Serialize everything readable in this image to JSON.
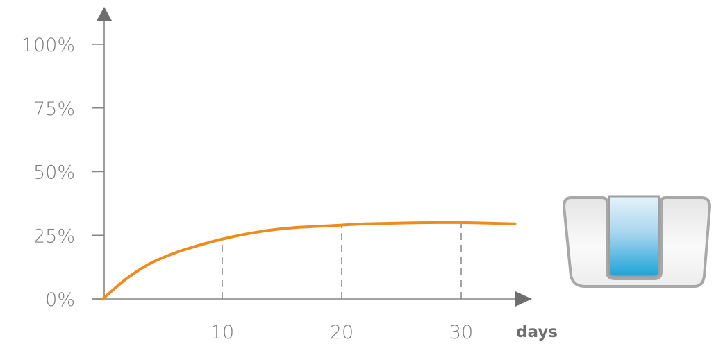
{
  "chart_data": {
    "type": "line",
    "title": "",
    "xlabel": "days",
    "ylabel": "",
    "xlim": [
      0,
      35
    ],
    "ylim": [
      0,
      100
    ],
    "x_ticks": [
      10,
      20,
      30
    ],
    "x_tick_labels": [
      "10",
      "20",
      "30"
    ],
    "y_ticks": [
      0,
      25,
      50,
      75,
      100
    ],
    "y_tick_labels": [
      "0%",
      "25%",
      "50%",
      "75%",
      "100%"
    ],
    "grid": false,
    "reference_lines_at_x": [
      10,
      20,
      30
    ],
    "series": [
      {
        "color": "#f08a1c",
        "x": [
          0,
          2,
          4,
          6,
          8,
          10,
          12,
          14,
          16,
          18,
          20,
          22,
          24,
          26,
          28,
          30,
          32,
          34.5
        ],
        "y": [
          0,
          8,
          14,
          18,
          21,
          23.5,
          25.5,
          27,
          28,
          28.5,
          29,
          29.5,
          29.7,
          29.9,
          30,
          30,
          29.8,
          29.5
        ]
      }
    ]
  },
  "decoration": {
    "icon": "fluid-container-icon",
    "fill_color": "#1aa3d8"
  }
}
